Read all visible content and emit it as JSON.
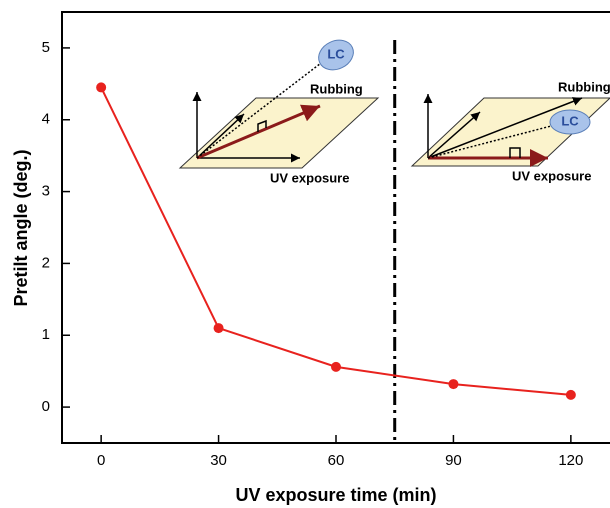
{
  "chart_data": {
    "type": "line",
    "x_label": "UV exposure time (min)",
    "y_label": "Pretilt angle (deg.)",
    "x": [
      0,
      30,
      60,
      90,
      120
    ],
    "series": [
      {
        "color": "#e8221e",
        "values": [
          4.45,
          1.1,
          0.56,
          0.32,
          0.17
        ]
      }
    ],
    "xlim": [
      -10,
      130
    ],
    "ylim": [
      -0.5,
      5.5
    ],
    "xticks": [
      0,
      30,
      60,
      90,
      120
    ],
    "yticks": [
      0,
      1,
      2,
      3,
      4,
      5
    ],
    "vline_x": 75,
    "annotations": {
      "left": {
        "lc": "LC",
        "rubbing": "Rubbing",
        "uv": "UV exposure"
      },
      "right": {
        "lc": "LC",
        "rubbing": "Rubbing",
        "uv": "UV exposure"
      }
    }
  }
}
